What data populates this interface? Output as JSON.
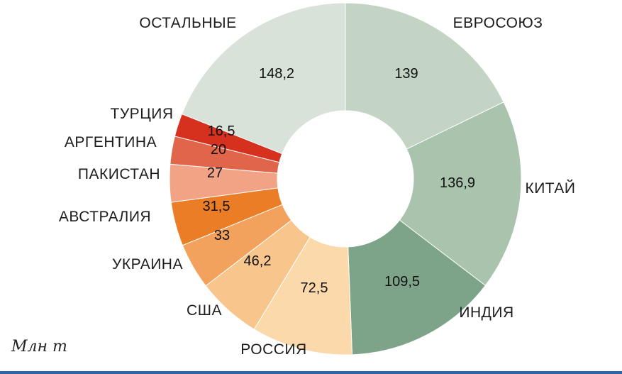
{
  "chart_data": {
    "type": "pie",
    "subtype": "donut",
    "title": "",
    "unit_label": "Млн т",
    "legend_position": "around-slices",
    "start_angle_deg": 0,
    "direction": "clockwise",
    "footer_rule_color": "#2e64a8",
    "slices": [
      {
        "name": "ЕВРОСОЮЗ",
        "value": 139,
        "display": "139",
        "color": "#c3d4c4"
      },
      {
        "name": "КИТАЙ",
        "value": 136.9,
        "display": "136,9",
        "color": "#a9c3ac"
      },
      {
        "name": "ИНДИЯ",
        "value": 109.5,
        "display": "109,5",
        "color": "#7da489"
      },
      {
        "name": "РОССИЯ",
        "value": 72.5,
        "display": "72,5",
        "color": "#fbd9ab"
      },
      {
        "name": "США",
        "value": 46.2,
        "display": "46,2",
        "color": "#f8c68c"
      },
      {
        "name": "УКРАИНА",
        "value": 33,
        "display": "33",
        "color": "#f2a25c"
      },
      {
        "name": "АВСТРАЛИЯ",
        "value": 31.5,
        "display": "31,5",
        "color": "#eb7d26"
      },
      {
        "name": "ПАКИСТАН",
        "value": 27,
        "display": "27",
        "color": "#f2a285"
      },
      {
        "name": "АРГЕНТИНА",
        "value": 20,
        "display": "20",
        "color": "#e1654a"
      },
      {
        "name": "ТУРЦИЯ",
        "value": 16.5,
        "display": "16,5",
        "color": "#d6301f"
      },
      {
        "name": "ОСТАЛЬНЫЕ",
        "value": 148.2,
        "display": "148,2",
        "color": "#d8e2d9"
      }
    ]
  }
}
